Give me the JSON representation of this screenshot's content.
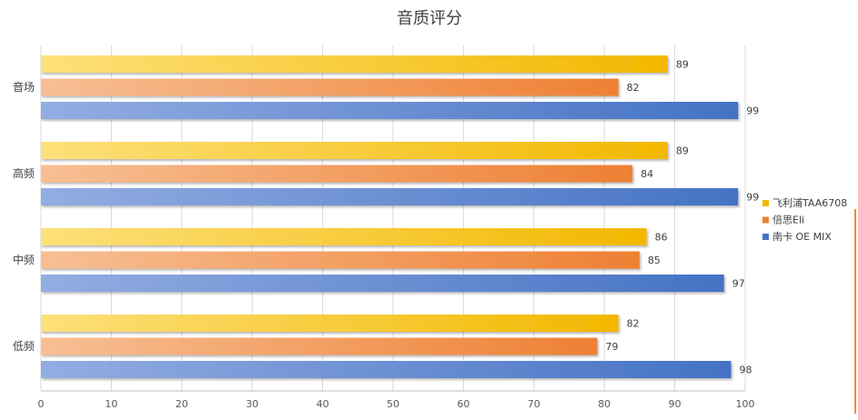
{
  "chart_data": {
    "type": "bar",
    "orientation": "horizontal",
    "title": "音质评分",
    "categories": [
      "音场",
      "高频",
      "中频",
      "低频"
    ],
    "series": [
      {
        "name": "飞利浦TAA6708",
        "values": [
          89,
          89,
          86,
          82
        ],
        "color_light": "#fde07a",
        "color_dark": "#f2b800"
      },
      {
        "name": "倍思Eli",
        "values": [
          82,
          84,
          85,
          79
        ],
        "color_light": "#f7bf94",
        "color_dark": "#ee8033"
      },
      {
        "name": "南卡 OE MIX",
        "values": [
          99,
          99,
          97,
          98
        ],
        "color_light": "#93ade2",
        "color_dark": "#4472c4"
      }
    ],
    "xlim": [
      0,
      100
    ],
    "xticks": [
      0,
      10,
      20,
      30,
      40,
      50,
      60,
      70,
      80,
      90,
      100
    ],
    "grid": true,
    "legend_position": "right"
  }
}
